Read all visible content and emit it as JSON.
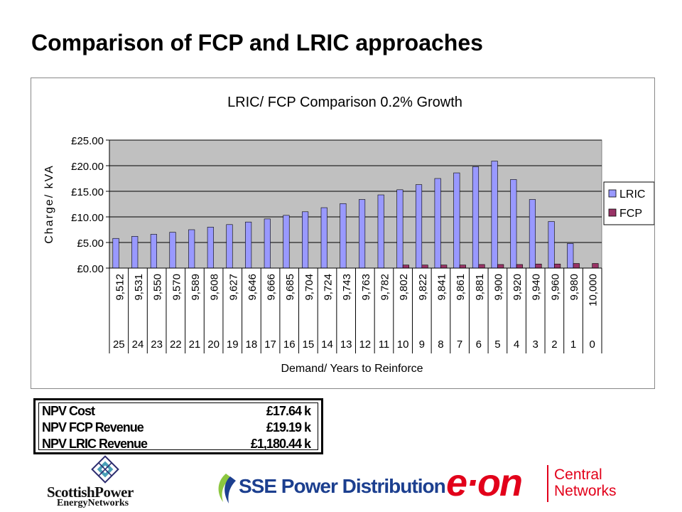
{
  "slide": {
    "title": "Comparison of FCP and LRIC approaches"
  },
  "colors": {
    "lric": "#9999ff",
    "fcp": "#993366",
    "plot_bg": "#c0c0c0",
    "sse_blue": "#1c3f8f",
    "eon_red": "#e2001a"
  },
  "chart_data": {
    "type": "bar",
    "title": "LRIC/ FCP Comparison 0.2% Growth",
    "xlabel": "Demand/ Years to Reinforce",
    "ylabel": "Charge/ kVA",
    "ylim": [
      0,
      25
    ],
    "ytick_labels": [
      "£0.00",
      "£5.00",
      "£10.00",
      "£15.00",
      "£20.00",
      "£25.00"
    ],
    "ytick_values": [
      0,
      5,
      10,
      15,
      20,
      25
    ],
    "grid": true,
    "legend_position": "right",
    "categories": [
      "9,512",
      "9,531",
      "9,550",
      "9,570",
      "9,589",
      "9,608",
      "9,627",
      "9,646",
      "9,666",
      "9,685",
      "9,704",
      "9,724",
      "9,743",
      "9,763",
      "9,782",
      "9,802",
      "9,822",
      "9,841",
      "9,861",
      "9,881",
      "9,900",
      "9,920",
      "9,940",
      "9,960",
      "9,980",
      "10,000"
    ],
    "categories_years": [
      "25",
      "24",
      "23",
      "22",
      "21",
      "20",
      "19",
      "18",
      "17",
      "16",
      "15",
      "14",
      "13",
      "12",
      "11",
      "10",
      "9",
      "8",
      "7",
      "6",
      "5",
      "4",
      "3",
      "2",
      "1",
      "0"
    ],
    "series": [
      {
        "name": "LRIC",
        "values": [
          5.8,
          6.2,
          6.6,
          7.0,
          7.5,
          8.0,
          8.5,
          9.0,
          9.6,
          10.3,
          11.0,
          11.8,
          12.6,
          13.4,
          14.3,
          15.3,
          16.3,
          17.5,
          18.6,
          19.8,
          20.9,
          17.3,
          13.4,
          9.1,
          4.8,
          0
        ]
      },
      {
        "name": "FCP",
        "values": [
          0,
          0,
          0,
          0,
          0,
          0,
          0,
          0,
          0,
          0,
          0,
          0,
          0,
          0,
          0,
          0.6,
          0.6,
          0.6,
          0.6,
          0.7,
          0.7,
          0.7,
          0.8,
          0.8,
          0.9,
          0.9
        ]
      }
    ]
  },
  "npv": {
    "rows": [
      {
        "label": "NPV Cost",
        "value": "£17.64 k"
      },
      {
        "label": "NPV FCP Revenue",
        "value": "£19.19 k"
      },
      {
        "label": "NPV LRIC Revenue",
        "value": "£1,180.44 k"
      }
    ]
  },
  "logos": {
    "scottish_power_line1": "ScottishPower",
    "scottish_power_line2": "EnergyNetworks",
    "sse": "SSE Power Distribution",
    "eon_mark": "e·on",
    "eon_sub_line1": "Central",
    "eon_sub_line2": "Networks"
  }
}
